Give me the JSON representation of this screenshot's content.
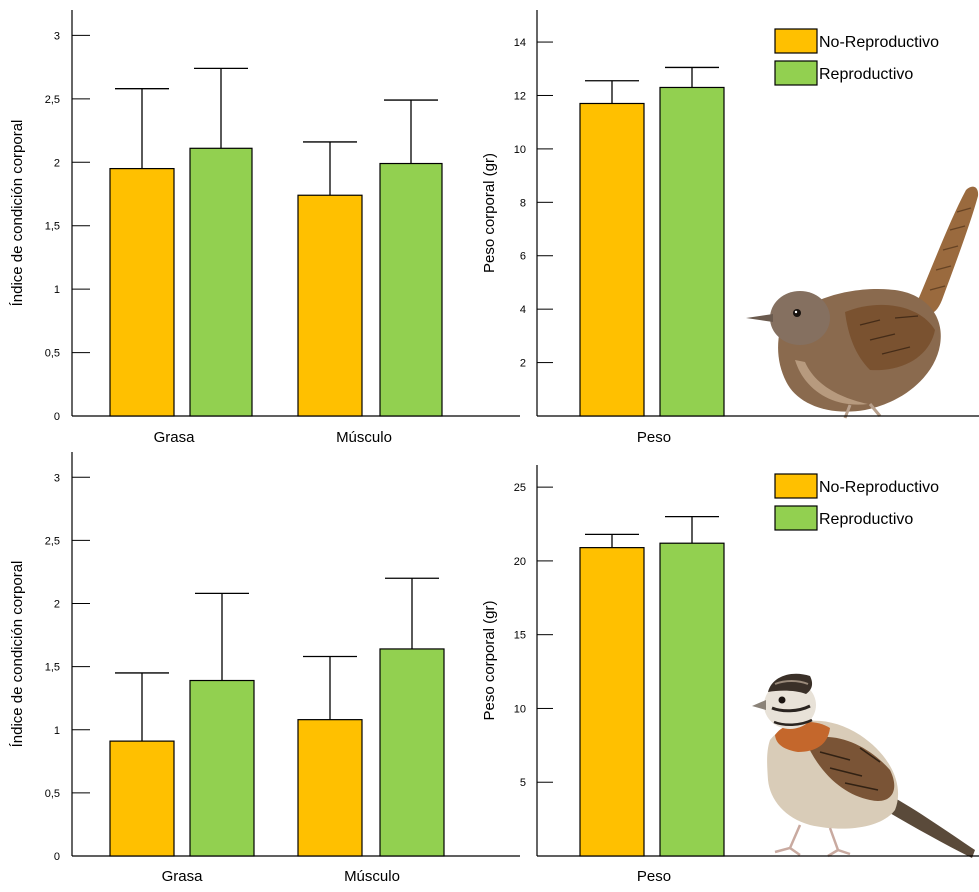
{
  "colors": {
    "no_reproductivo": "#FFC000",
    "reproductivo": "#92D050",
    "bar_stroke": "#000000"
  },
  "birds": {
    "top": {
      "name": "wren-bird-image"
    },
    "bottom": {
      "name": "sparrow-bird-image"
    }
  },
  "chart_data": [
    {
      "id": "top-left",
      "type": "bar",
      "ylabel": "Índice de condición corporal",
      "ylim": [
        0,
        3.2
      ],
      "yticks": [
        0,
        0.5,
        1,
        1.5,
        2,
        2.5,
        3
      ],
      "ytick_labels": [
        "0",
        "0,5",
        "1",
        "1,5",
        "2",
        "2,5",
        "3"
      ],
      "categories": [
        "Grasa",
        "Músculo"
      ],
      "series": [
        {
          "key": "no_reproductivo",
          "values": [
            1.95,
            1.74
          ],
          "errors": [
            0.63,
            0.42
          ]
        },
        {
          "key": "reproductivo",
          "values": [
            2.11,
            1.99
          ],
          "errors": [
            0.63,
            0.5
          ]
        }
      ]
    },
    {
      "id": "top-right",
      "type": "bar",
      "ylabel": "Peso corporal (gr)",
      "ylim": [
        0,
        15.2
      ],
      "yticks": [
        2,
        4,
        6,
        8,
        10,
        12,
        14
      ],
      "ytick_labels": [
        "2",
        "4",
        "6",
        "8",
        "10",
        "12",
        "14"
      ],
      "categories": [
        "Peso"
      ],
      "series": [
        {
          "key": "no_reproductivo",
          "values": [
            11.7
          ],
          "errors": [
            0.85
          ]
        },
        {
          "key": "reproductivo",
          "values": [
            12.3
          ],
          "errors": [
            0.75
          ]
        }
      ],
      "legend": {
        "placement": "top-right",
        "entries": [
          {
            "key": "no_reproductivo",
            "label": "No-Reproductivo"
          },
          {
            "key": "reproductivo",
            "label": "Reproductivo"
          }
        ]
      }
    },
    {
      "id": "bottom-left",
      "type": "bar",
      "ylabel": "Índice de condición corporal",
      "ylim": [
        0,
        3.2
      ],
      "yticks": [
        0,
        0.5,
        1,
        1.5,
        2,
        2.5,
        3
      ],
      "ytick_labels": [
        "0",
        "0,5",
        "1",
        "1,5",
        "2",
        "2,5",
        "3"
      ],
      "categories": [
        "Grasa",
        "Músculo"
      ],
      "series": [
        {
          "key": "no_reproductivo",
          "values": [
            0.91,
            1.08
          ],
          "errors": [
            0.54,
            0.5
          ]
        },
        {
          "key": "reproductivo",
          "values": [
            1.39,
            1.64
          ],
          "errors": [
            0.69,
            0.56
          ]
        }
      ]
    },
    {
      "id": "bottom-right",
      "type": "bar",
      "ylabel": "Peso corporal (gr)",
      "ylim": [
        0,
        26.5
      ],
      "yticks": [
        5,
        10,
        15,
        20,
        25
      ],
      "ytick_labels": [
        "5",
        "10",
        "15",
        "20",
        "25"
      ],
      "categories": [
        "Peso"
      ],
      "series": [
        {
          "key": "no_reproductivo",
          "values": [
            20.9
          ],
          "errors": [
            0.9
          ]
        },
        {
          "key": "reproductivo",
          "values": [
            21.2
          ],
          "errors": [
            1.8
          ]
        }
      ],
      "legend": {
        "placement": "top-right",
        "entries": [
          {
            "key": "no_reproductivo",
            "label": "No-Reproductivo"
          },
          {
            "key": "reproductivo",
            "label": "Reproductivo"
          }
        ]
      }
    }
  ]
}
